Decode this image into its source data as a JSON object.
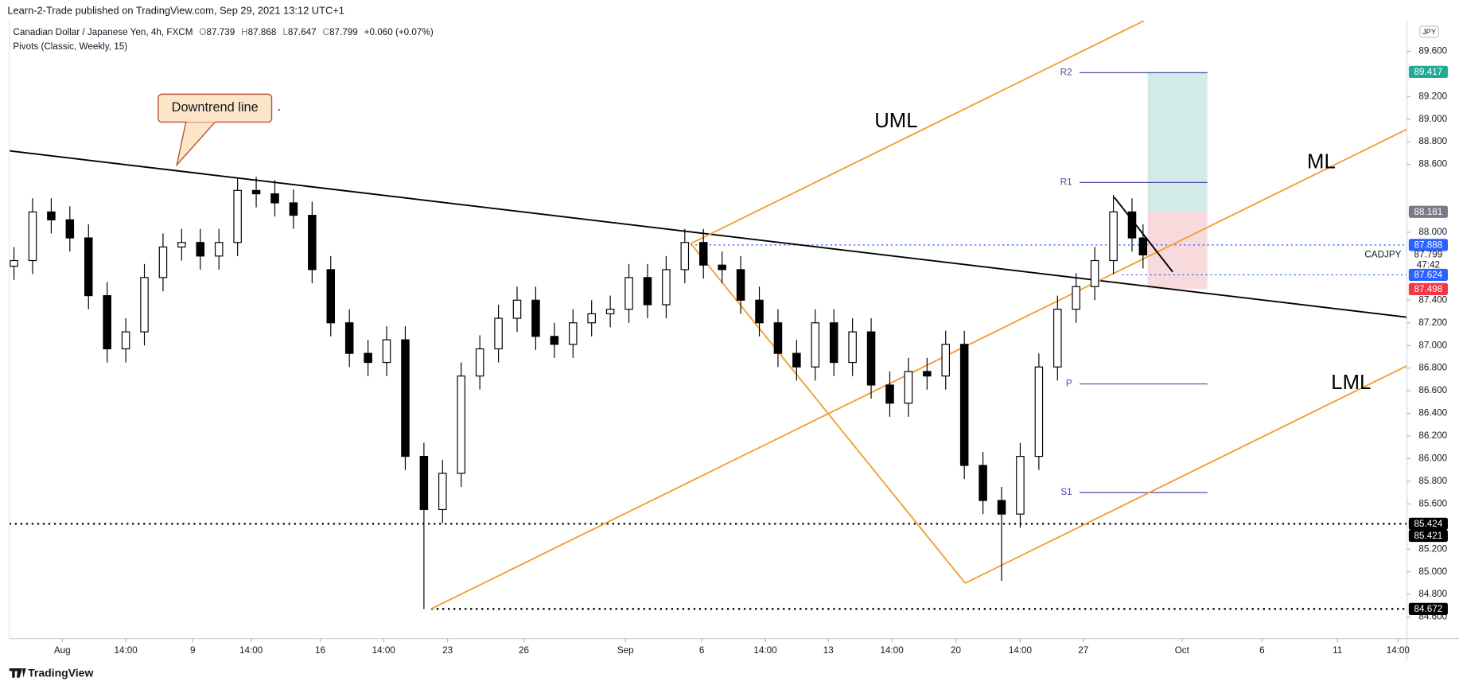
{
  "header": "Learn-2-Trade published on TradingView.com, Sep 29, 2021 13:12 UTC+1",
  "footer": "TradingView",
  "chart_data": {
    "type": "candlestick",
    "title": "Canadian Dollar / Japanese Yen, 4h, FXCM",
    "ohlc_readout": {
      "open_label": "O",
      "open": 87.739,
      "high_label": "H",
      "high": 87.868,
      "low_label": "L",
      "low": 87.647,
      "close_label": "C",
      "close": 87.799,
      "change": "+0.060 (+0.07%)"
    },
    "indicator": "Pivots (Classic, Weekly, 15)",
    "currency": "JPY",
    "symbol": "CADJPY",
    "countdown": "47:42",
    "labels": {
      "callout": "Downtrend line",
      "dot": ".",
      "uml": "UML",
      "ml": "ML",
      "lml": "LML"
    },
    "up_color": "#ffffff",
    "down_color": "#000000",
    "x": [
      1.1,
      5.5,
      9.9,
      14.3,
      18.7,
      23.1,
      27.5,
      31.9,
      36.3,
      40.7,
      45.1,
      49.5,
      53.9,
      58.3,
      62.7,
      67.1,
      71.5,
      75.9,
      80.3,
      84.7,
      89.1,
      93.5,
      97.9,
      102.3,
      106.7,
      111.1,
      115.5,
      119.9,
      124.3,
      128.7,
      133.1,
      137.5,
      141.9,
      146.3,
      150.7,
      155.1,
      159.5,
      163.9,
      168.3,
      172.7,
      177.1,
      181.5,
      185.9,
      190.3,
      194.7,
      199.1,
      203.5,
      207.9,
      212.3,
      216.7,
      221.1,
      225.5,
      229.9,
      234.3,
      238.7,
      243.1,
      247.5,
      251.9,
      256.3,
      260.7,
      265.1,
      267.7
    ],
    "open": [
      87.7,
      87.75,
      88.18,
      88.11,
      87.95,
      87.44,
      86.97,
      87.12,
      87.6,
      87.87,
      87.91,
      87.79,
      87.91,
      88.37,
      88.34,
      88.26,
      88.15,
      87.67,
      87.2,
      86.93,
      86.85,
      87.05,
      86.02,
      85.55,
      85.87,
      86.73,
      86.97,
      87.24,
      87.4,
      87.08,
      87.01,
      87.2,
      87.28,
      87.32,
      87.6,
      87.36,
      87.67,
      87.91,
      87.71,
      87.67,
      87.4,
      87.2,
      86.93,
      86.81,
      87.2,
      86.85,
      87.12,
      86.65,
      86.49,
      86.77,
      86.73,
      87.01,
      85.94,
      85.63,
      85.51,
      86.02,
      86.81,
      87.32,
      87.52,
      87.75,
      88.18,
      87.95
    ],
    "high": [
      87.87,
      88.3,
      88.3,
      88.23,
      88.07,
      87.56,
      87.24,
      87.72,
      87.99,
      88.03,
      88.03,
      88.03,
      88.48,
      88.49,
      88.46,
      88.38,
      88.27,
      87.79,
      87.32,
      87.05,
      87.17,
      87.17,
      86.14,
      85.99,
      86.85,
      87.09,
      87.36,
      87.52,
      87.52,
      87.2,
      87.32,
      87.4,
      87.44,
      87.72,
      87.72,
      87.79,
      88.03,
      88.03,
      87.83,
      87.79,
      87.52,
      87.32,
      87.05,
      87.32,
      87.32,
      87.24,
      87.24,
      86.77,
      86.89,
      86.89,
      87.13,
      87.13,
      86.06,
      85.75,
      86.14,
      86.93,
      87.44,
      87.64,
      87.87,
      88.33,
      88.3,
      88.07
    ],
    "low": [
      87.58,
      87.63,
      87.99,
      87.83,
      87.32,
      86.85,
      86.85,
      87.0,
      87.48,
      87.75,
      87.67,
      87.67,
      87.79,
      88.22,
      88.14,
      88.03,
      87.55,
      87.08,
      86.81,
      86.73,
      86.73,
      85.9,
      84.67,
      85.43,
      85.75,
      86.61,
      86.85,
      87.12,
      86.96,
      86.89,
      86.89,
      87.08,
      87.16,
      87.2,
      87.24,
      87.24,
      87.55,
      87.59,
      87.55,
      87.28,
      87.08,
      86.81,
      86.69,
      86.69,
      86.73,
      86.73,
      86.53,
      86.37,
      86.37,
      86.61,
      86.61,
      85.82,
      85.51,
      84.92,
      85.39,
      85.9,
      86.69,
      87.2,
      87.4,
      87.63,
      87.83,
      87.68
    ],
    "close": [
      87.75,
      88.18,
      88.11,
      87.95,
      87.44,
      86.97,
      87.12,
      87.6,
      87.87,
      87.91,
      87.79,
      87.91,
      88.37,
      88.34,
      88.26,
      88.15,
      87.67,
      87.2,
      86.93,
      86.85,
      87.05,
      86.02,
      85.55,
      85.87,
      86.73,
      86.97,
      87.24,
      87.4,
      87.08,
      87.01,
      87.2,
      87.28,
      87.32,
      87.6,
      87.36,
      87.67,
      87.91,
      87.71,
      87.67,
      87.4,
      87.2,
      86.93,
      86.81,
      87.2,
      86.85,
      87.12,
      86.65,
      86.49,
      86.77,
      86.73,
      87.01,
      85.94,
      85.63,
      85.51,
      86.02,
      86.81,
      87.32,
      87.52,
      87.75,
      88.18,
      87.95,
      87.8
    ],
    "xlim": [
      0,
      330
    ],
    "xticks": [
      {
        "value": 12.5,
        "label": "Aug"
      },
      {
        "value": 27.5,
        "label": "14:00"
      },
      {
        "value": 43.3,
        "label": "9"
      },
      {
        "value": 57.1,
        "label": "14:00"
      },
      {
        "value": 73.4,
        "label": "16"
      },
      {
        "value": 88.4,
        "label": "14:00"
      },
      {
        "value": 103.5,
        "label": "23"
      },
      {
        "value": 121.5,
        "label": "26"
      },
      {
        "value": 145.5,
        "label": "Sep"
      },
      {
        "value": 163.5,
        "label": "6"
      },
      {
        "value": 178.5,
        "label": "14:00"
      },
      {
        "value": 193.4,
        "label": "13"
      },
      {
        "value": 208.4,
        "label": "14:00"
      },
      {
        "value": 223.5,
        "label": "20"
      },
      {
        "value": 238.7,
        "label": "14:00"
      },
      {
        "value": 253.6,
        "label": "27"
      },
      {
        "value": 276.9,
        "label": "Oct"
      },
      {
        "value": 295.8,
        "label": "6"
      },
      {
        "value": 313.6,
        "label": "11"
      },
      {
        "value": 327.9,
        "label": "14:00"
      }
    ],
    "ylim": [
      84.41,
      89.87
    ],
    "yticks": [
      {
        "value": 84.6,
        "label": "84.600"
      },
      {
        "value": 84.8,
        "label": "84.800"
      },
      {
        "value": 85,
        "label": "85.000"
      },
      {
        "value": 85.2,
        "label": "85.200"
      },
      {
        "value": 85.6,
        "label": "85.600"
      },
      {
        "value": 85.8,
        "label": "85.800"
      },
      {
        "value": 86,
        "label": "86.000"
      },
      {
        "value": 86.2,
        "label": "86.200"
      },
      {
        "value": 86.4,
        "label": "86.400"
      },
      {
        "value": 86.6,
        "label": "86.600"
      },
      {
        "value": 86.8,
        "label": "86.800"
      },
      {
        "value": 87,
        "label": "87.000"
      },
      {
        "value": 87.2,
        "label": "87.200"
      },
      {
        "value": 87.4,
        "label": "87.400"
      },
      {
        "value": 88,
        "label": "88.000"
      },
      {
        "value": 88.6,
        "label": "88.600"
      },
      {
        "value": 88.8,
        "label": "88.800"
      },
      {
        "value": 89,
        "label": "89.000"
      },
      {
        "value": 89.2,
        "label": "89.200"
      },
      {
        "value": 89.6,
        "label": "89.600"
      }
    ],
    "drawings": [
      {
        "color": "#000000",
        "points": [
          [
            0,
            88.72
          ],
          [
            330,
            87.25
          ]
        ]
      },
      {
        "color": "#f0a034",
        "points": [
          [
            99.6,
            84.672
          ],
          [
            330,
            88.91
          ]
        ]
      },
      {
        "color": "#f0a034",
        "points": [
          [
            160.9,
            87.9
          ],
          [
            268,
            89.87
          ]
        ]
      },
      {
        "color": "#f0a034",
        "points": [
          [
            225.7,
            84.9
          ],
          [
            330,
            86.82
          ]
        ]
      },
      {
        "color": "#f0a034",
        "points": [
          [
            160.9,
            87.9
          ],
          [
            225.7,
            84.9
          ]
        ]
      },
      {
        "color": "#000000",
        "points": [
          [
            260.9,
            88.31
          ],
          [
            274.7,
            87.65
          ]
        ]
      }
    ],
    "levels": [
      {
        "value": 85.424,
        "from": 0,
        "color": "#000000"
      },
      {
        "value": 84.672,
        "from": 99.6,
        "color": "#000000"
      },
      {
        "value": 87.888,
        "from": 160.9,
        "color": "#2962ff"
      },
      {
        "value": 87.624,
        "from": 262.7,
        "color": "#2962ff"
      }
    ],
    "pivot_color": "#4a4aa8",
    "pivot_range": [
      252.7,
      282.9
    ],
    "pivots": [
      {
        "label": "R2",
        "value": 89.41
      },
      {
        "label": "R1",
        "value": 88.44
      },
      {
        "label": "P",
        "value": 86.66
      },
      {
        "label": "S1",
        "value": 85.7
      }
    ],
    "position": {
      "x": [
        268.8,
        282.9
      ],
      "entry": 88.181,
      "target": 89.417,
      "stop": 87.498,
      "target_color": "#d2eae8",
      "stop_color": "#f9dadc"
    },
    "price_labels": [
      {
        "value": 89.417,
        "color": "#22ab94"
      },
      {
        "value": 88.181,
        "color": "#787b86"
      },
      {
        "value": 87.888,
        "color": "#2962ff"
      },
      {
        "value": 87.624,
        "color": "#2962ff"
      },
      {
        "value": 87.498,
        "color": "#f23645"
      },
      {
        "value": 85.424,
        "color": "#000000"
      },
      {
        "value": 85.421,
        "color": "#000000"
      },
      {
        "value": 84.672,
        "color": "#000000"
      }
    ]
  }
}
